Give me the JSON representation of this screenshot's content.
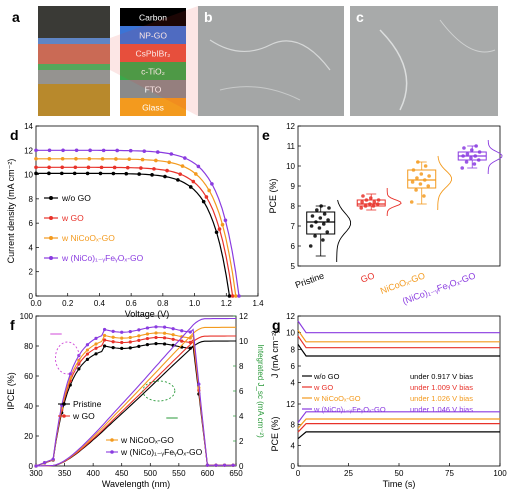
{
  "panels": {
    "a": "a",
    "b": "b",
    "c": "c",
    "d": "d",
    "e": "e",
    "f": "f",
    "g": "g"
  },
  "layer_stack": {
    "layers": [
      {
        "name": "Carbon",
        "color": "#000000",
        "text_color": "#ffffff"
      },
      {
        "name": "NP-GO",
        "color": "#3b74d6",
        "text_color": "#ffffff"
      },
      {
        "name": "CsPbIBr₂",
        "color": "#e8543f",
        "text_color": "#ffffff"
      },
      {
        "name": "c-TiO₂",
        "color": "#3aa84a",
        "text_color": "#ffffff"
      },
      {
        "name": "FTO",
        "color": "#8a8a8a",
        "text_color": "#ffffff"
      },
      {
        "name": "Glass",
        "color": "#f39a1e",
        "text_color": "#ffffff"
      }
    ]
  },
  "colors": {
    "black": "#000000",
    "red": "#e8322a",
    "orange": "#f39a1e",
    "purple": "#8a3be0"
  },
  "chart_data": [
    {
      "id": "d",
      "type": "line",
      "xlabel": "Voltage (V)",
      "ylabel": "Current density (mA cm⁻²)",
      "xlim": [
        0,
        1.4
      ],
      "ylim": [
        0,
        14
      ],
      "xticks": [
        "0.0",
        "0.2",
        "0.4",
        "0.6",
        "0.8",
        "1.0",
        "1.2",
        "1.4"
      ],
      "yticks": [
        "0",
        "2",
        "4",
        "6",
        "8",
        "10",
        "12",
        "14"
      ],
      "series": [
        {
          "name": "w/o GO",
          "color": "#000000",
          "jsc": 10.1,
          "voc": 1.22
        },
        {
          "name": "w GO",
          "color": "#e8322a",
          "jsc": 10.6,
          "voc": 1.24
        },
        {
          "name": "w NiCoOₓ-GO",
          "color": "#f39a1e",
          "jsc": 11.3,
          "voc": 1.26
        },
        {
          "name": "w (NiCo)₁₋ᵧFeᵧOₓ-GO",
          "color": "#8a3be0",
          "jsc": 12.0,
          "voc": 1.28
        }
      ]
    },
    {
      "id": "e",
      "type": "box",
      "ylabel": "PCE (%)",
      "ylim": [
        5,
        12
      ],
      "yticks": [
        "5",
        "6",
        "7",
        "8",
        "9",
        "10",
        "11",
        "12"
      ],
      "categories": [
        "Pristine",
        "GO",
        "NiCoOₓ-GO",
        "(NiCo)₁₋ᵧFeᵧOₓ-GO"
      ],
      "series": [
        {
          "name": "Pristine",
          "color": "#000000",
          "q1": 6.6,
          "median": 7.2,
          "q3": 7.7,
          "whisker_low": 5.5,
          "whisker_high": 8.0,
          "points": [
            6.0,
            6.3,
            6.5,
            6.7,
            6.9,
            7.0,
            7.1,
            7.2,
            7.3,
            7.4,
            7.5,
            7.6,
            7.8,
            7.9,
            8.0
          ]
        },
        {
          "name": "GO",
          "color": "#e8322a",
          "q1": 8.0,
          "median": 8.1,
          "q3": 8.3,
          "whisker_low": 7.8,
          "whisker_high": 8.6,
          "points": [
            7.9,
            8.0,
            8.0,
            8.1,
            8.1,
            8.2,
            8.2,
            8.3,
            8.3,
            8.4,
            8.5
          ]
        },
        {
          "name": "NiCoOₓ-GO",
          "color": "#f39a1e",
          "q1": 8.9,
          "median": 9.3,
          "q3": 9.8,
          "whisker_low": 8.1,
          "whisker_high": 10.2,
          "points": [
            8.2,
            8.5,
            8.8,
            9.0,
            9.1,
            9.2,
            9.3,
            9.4,
            9.5,
            9.6,
            9.8,
            10.0,
            10.2
          ]
        },
        {
          "name": "(NiCo)₁₋ᵧFeᵧOₓ-GO",
          "color": "#8a3be0",
          "q1": 10.3,
          "median": 10.5,
          "q3": 10.7,
          "whisker_low": 9.9,
          "whisker_high": 11.0,
          "points": [
            9.9,
            10.1,
            10.2,
            10.3,
            10.4,
            10.5,
            10.5,
            10.6,
            10.7,
            10.8,
            10.9,
            11.0
          ]
        }
      ]
    },
    {
      "id": "f",
      "type": "line",
      "xlabel": "Wavelength (nm)",
      "ylabel": "IPCE (%)",
      "y2label": "Integrated J_sc (mA cm⁻²)",
      "xlim": [
        300,
        650
      ],
      "ylim": [
        0,
        100
      ],
      "y2lim": [
        0,
        12
      ],
      "xticks": [
        "300",
        "350",
        "400",
        "450",
        "500",
        "550",
        "600",
        "650"
      ],
      "yticks": [
        "0",
        "20",
        "40",
        "60",
        "80",
        "100"
      ],
      "y2ticks": [
        "0",
        "2",
        "4",
        "6",
        "8",
        "10",
        "12"
      ],
      "series": [
        {
          "name": "Pristine",
          "color": "#000000",
          "plateau": 80,
          "jsc_final": 10.0
        },
        {
          "name": "w GO",
          "color": "#e8322a",
          "plateau": 84,
          "jsc_final": 10.4
        },
        {
          "name": "w NiCoOₓ-GO",
          "color": "#f39a1e",
          "plateau": 87,
          "jsc_final": 11.1
        },
        {
          "name": "w (NiCo)₁₋ᵧFeᵧOₓ-GO",
          "color": "#8a3be0",
          "plateau": 91,
          "jsc_final": 11.8
        }
      ]
    },
    {
      "id": "g",
      "type": "line",
      "xlabel": "Time (s)",
      "ylabel_top": "J (mA cm⁻²)",
      "ylabel_bottom": "PCE (%)",
      "xlim": [
        0,
        100
      ],
      "xticks": [
        "0",
        "25",
        "50",
        "75",
        "100"
      ],
      "yticks_top": [
        "12",
        "10",
        "8",
        "6",
        "4"
      ],
      "yticks_bottom": [
        "0",
        "4",
        "8",
        "12"
      ],
      "series": [
        {
          "name": "w/o GO",
          "color": "#000000",
          "bias": "under 0.917 V bias",
          "j": 7.2,
          "pce": 6.6
        },
        {
          "name": "w   GO",
          "color": "#e8322a",
          "bias": "under 1.009 V bias",
          "j": 8.2,
          "pce": 8.2
        },
        {
          "name": "w NiCoOₓ-GO",
          "color": "#f39a1e",
          "bias": "under 1.026 V bias",
          "j": 8.9,
          "pce": 9.1
        },
        {
          "name": "w (NiCo)₁₋ᵧFeᵧOₓ-GO",
          "color": "#8a3be0",
          "bias": "under 1.046 V bias",
          "j": 10.0,
          "pce": 10.5
        }
      ]
    }
  ]
}
